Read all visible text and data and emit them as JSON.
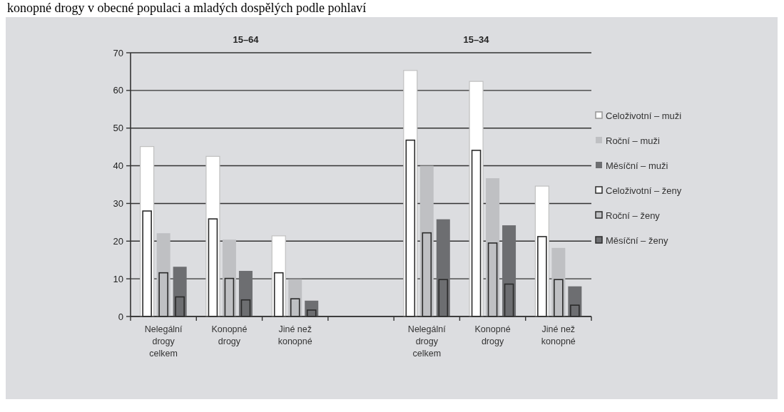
{
  "chart_data": {
    "type": "bar",
    "title": "konopné drogy v obecné populaci a mladých dospělých podle pohlaví",
    "annotations": [
      "15–64",
      "15–34"
    ],
    "categories": [
      "Nelegální drogy celkem",
      "Konopné drogy",
      "Jiné než konopné",
      null,
      "Nelegální drogy celkem",
      "Konopné drogy",
      "Jiné než konopné"
    ],
    "series": [
      {
        "name": "Celoživotní – muži",
        "color": "#ffffff",
        "values": [
          45.1,
          42.5,
          21.4,
          null,
          65.3,
          62.4,
          34.6
        ]
      },
      {
        "name": "Roční – muži",
        "color": "#bfc0c3",
        "values": [
          22.1,
          20.4,
          9.9,
          null,
          40.0,
          36.7,
          18.2
        ]
      },
      {
        "name": "Měsíční – muži",
        "color": "#6d6e71",
        "values": [
          13.2,
          12.1,
          4.2,
          null,
          25.8,
          24.2,
          8.0
        ]
      },
      {
        "name": "Celoživotní – ženy",
        "color": "#ffffff",
        "values": [
          28.0,
          25.9,
          11.6,
          null,
          46.8,
          44.1,
          21.2
        ]
      },
      {
        "name": "Roční – ženy",
        "color": "#bfc0c3",
        "values": [
          11.6,
          10.1,
          4.7,
          null,
          22.2,
          19.5,
          9.8
        ]
      },
      {
        "name": "Měsíční – ženy",
        "color": "#6d6e71",
        "values": [
          5.2,
          4.4,
          1.7,
          null,
          9.8,
          8.6,
          3.0
        ]
      }
    ],
    "ylim": [
      0,
      70
    ],
    "yticks": [
      0,
      10,
      20,
      30,
      40,
      50,
      60,
      70
    ],
    "grid": "y",
    "legend": "right"
  }
}
